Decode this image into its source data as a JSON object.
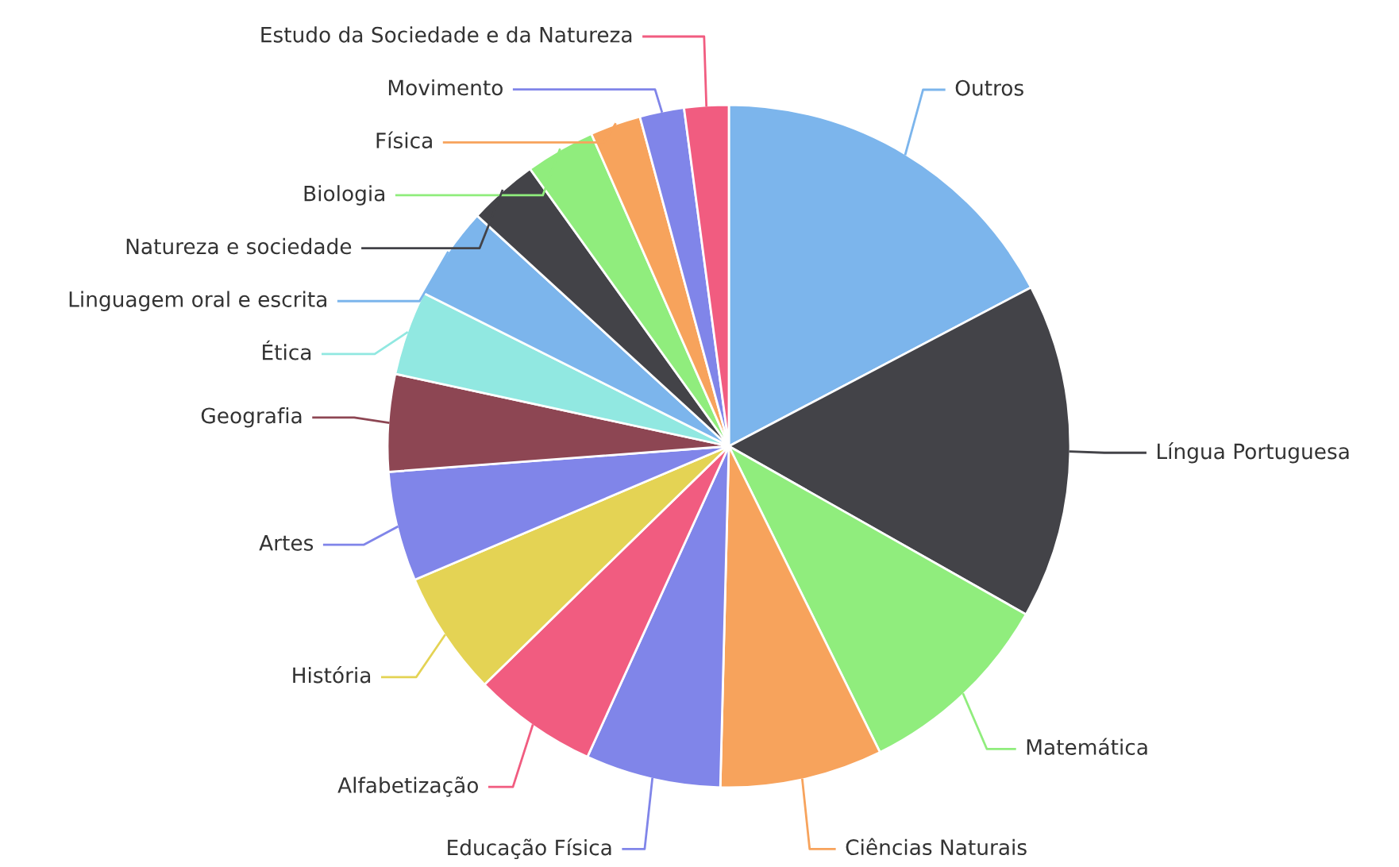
{
  "chart_data": {
    "type": "pie",
    "categories": [
      "Outros",
      "Língua Portuguesa",
      "Matemática",
      "Ciências Naturais",
      "Educação Física",
      "Alfabetização",
      "História",
      "Artes",
      "Geografia",
      "Ética",
      "Linguagem oral e escrita",
      "Natureza e sociedade",
      "Biologia",
      "Física",
      "Movimento",
      "Estudo da Sociedade e da Natureza"
    ],
    "values": [
      17.3,
      15.9,
      9.5,
      7.7,
      6.4,
      5.9,
      5.9,
      5.2,
      4.6,
      4.0,
      4.4,
      3.3,
      3.3,
      2.4,
      2.1,
      2.1
    ],
    "colors": [
      "#7cb5ec",
      "#434348",
      "#90ed7d",
      "#f7a35c",
      "#8085e9",
      "#f15c80",
      "#e4d354",
      "#8085e9",
      "#8d4653",
      "#91e8e1",
      "#7cb5ec",
      "#434348",
      "#90ed7d",
      "#f7a35c",
      "#8085e9",
      "#f15c80"
    ]
  }
}
